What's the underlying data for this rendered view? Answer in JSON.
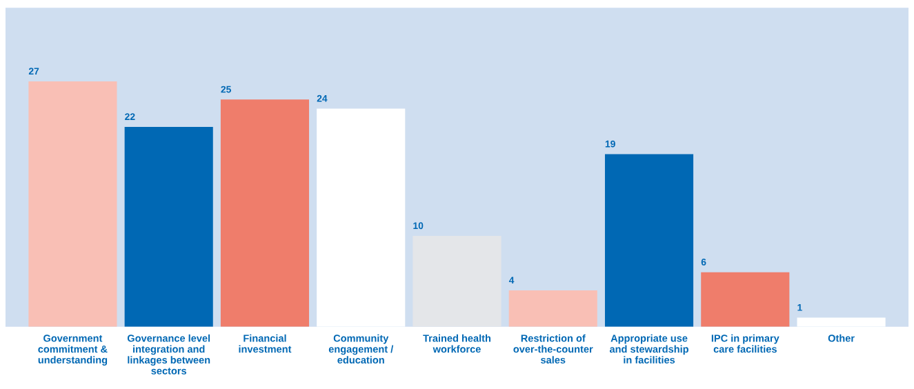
{
  "chart_data": {
    "type": "bar",
    "categories": [
      "Government\ncommitment &\nunderstanding",
      "Governance level\nintegration and\nlinkages between\nsectors",
      "Financial\ninvestment",
      "Community\nengagement /\neducation",
      "Trained health\nworkforce",
      "Restriction of\nover-the-counter\nsales",
      "Appropriate use\nand stewardship\nin facilities",
      "IPC in primary\ncare facilities",
      "Other"
    ],
    "values": [
      27,
      22,
      25,
      24,
      10,
      4,
      19,
      6,
      1
    ],
    "colors": [
      "#f9bfb5",
      "#0068b4",
      "#ef7d6b",
      "#ffffff",
      "#e4e6e9",
      "#f9bfb5",
      "#0068b4",
      "#ef7d6b",
      "#ffffff"
    ],
    "data_labels": true,
    "grid": false,
    "legend": false
  }
}
